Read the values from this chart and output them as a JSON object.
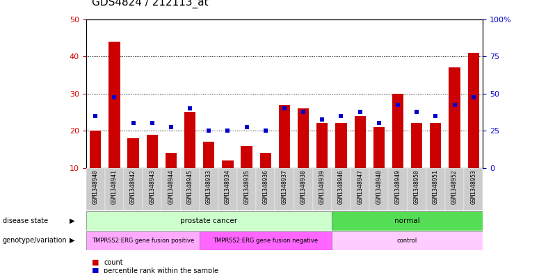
{
  "title": "GDS4824 / 212113_at",
  "samples": [
    "GSM1348940",
    "GSM1348941",
    "GSM1348942",
    "GSM1348943",
    "GSM1348944",
    "GSM1348945",
    "GSM1348933",
    "GSM1348934",
    "GSM1348935",
    "GSM1348936",
    "GSM1348937",
    "GSM1348938",
    "GSM1348939",
    "GSM1348946",
    "GSM1348947",
    "GSM1348948",
    "GSM1348949",
    "GSM1348950",
    "GSM1348951",
    "GSM1348952",
    "GSM1348953"
  ],
  "counts": [
    20,
    44,
    18,
    19,
    14,
    25,
    17,
    12,
    16,
    14,
    27,
    26,
    22,
    22,
    24,
    21,
    30,
    22,
    22,
    37,
    41
  ],
  "percentiles": [
    24,
    29,
    22,
    22,
    21,
    26,
    20,
    20,
    21,
    20,
    26,
    25,
    23,
    24,
    25,
    22,
    27,
    25,
    24,
    27,
    29
  ],
  "ylim_left": [
    10,
    50
  ],
  "ylim_right": [
    0,
    100
  ],
  "yticks_left": [
    10,
    20,
    30,
    40,
    50
  ],
  "yticks_right": [
    0,
    25,
    50,
    75,
    100
  ],
  "bar_color": "#cc0000",
  "dot_color": "#0000cc",
  "groups": {
    "disease_state": [
      {
        "label": "prostate cancer",
        "start": 0,
        "end": 12,
        "color": "#ccffcc"
      },
      {
        "label": "normal",
        "start": 13,
        "end": 20,
        "color": "#55dd55"
      }
    ],
    "genotype": [
      {
        "label": "TMPRSS2:ERG gene fusion positive",
        "start": 0,
        "end": 5,
        "color": "#ffaaff"
      },
      {
        "label": "TMPRSS2:ERG gene fusion negative",
        "start": 6,
        "end": 12,
        "color": "#ff66ff"
      },
      {
        "label": "control",
        "start": 13,
        "end": 20,
        "color": "#ffccff"
      }
    ]
  },
  "legend_items": [
    {
      "label": "count",
      "color": "#cc0000"
    },
    {
      "label": "percentile rank within the sample",
      "color": "#0000cc"
    }
  ],
  "bg_color": "#ffffff",
  "plot_bg": "#ffffff",
  "tick_label_color_left": "#cc0000",
  "tick_label_color_right": "#0000cc",
  "title_fontsize": 11,
  "axis_fontsize": 8,
  "xtick_fontsize": 6,
  "xtick_bg": "#cccccc"
}
